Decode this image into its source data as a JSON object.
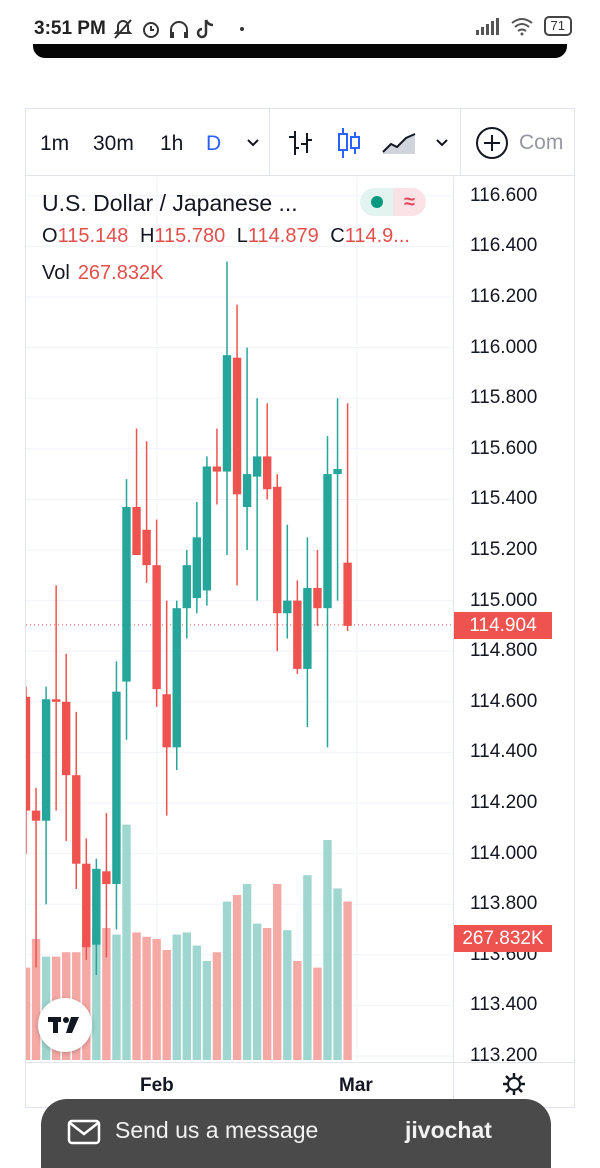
{
  "status_bar": {
    "time": "3:51 PM",
    "battery": "71"
  },
  "toolbar": {
    "timeframes": [
      "1m",
      "30m",
      "1h",
      "D"
    ],
    "active_timeframe": "D",
    "compare_label": "Com"
  },
  "legend": {
    "title": "U.S. Dollar / Japanese ...",
    "open_label": "O",
    "open": "115.148",
    "high_label": "H",
    "high": "115.780",
    "low_label": "L",
    "low": "114.879",
    "close_label": "C",
    "close": "114.9...",
    "vol_label": "Vol",
    "vol": "267.832K"
  },
  "price_axis": {
    "labels": [
      "116.600",
      "116.400",
      "116.200",
      "116.000",
      "115.800",
      "115.600",
      "115.400",
      "115.200",
      "115.000",
      "114.800",
      "114.600",
      "114.400",
      "114.200",
      "114.000",
      "113.800",
      "113.600",
      "113.400",
      "113.200"
    ],
    "last_price": "114.904",
    "last_volume": "267.832K"
  },
  "time_axis": {
    "labels": [
      "Feb",
      "Mar"
    ]
  },
  "jivo": {
    "message": "Send us a message",
    "brand": "jivochat"
  },
  "colors": {
    "up": "#26a69a",
    "down": "#ef5350",
    "accent": "#2962ff"
  },
  "chart_data": {
    "type": "candlestick",
    "title": "U.S. Dollar / Japanese ...",
    "ylim": [
      113.2,
      116.6
    ],
    "x_labels": [
      "Feb",
      "Mar"
    ],
    "candles": [
      {
        "o": 114.62,
        "h": 114.66,
        "l": 114.0,
        "c": 114.17
      },
      {
        "o": 114.17,
        "h": 114.26,
        "l": 113.55,
        "c": 114.13
      },
      {
        "o": 114.13,
        "h": 114.66,
        "l": 113.8,
        "c": 114.61
      },
      {
        "o": 114.61,
        "h": 115.06,
        "l": 114.17,
        "c": 114.6
      },
      {
        "o": 114.6,
        "h": 114.79,
        "l": 114.05,
        "c": 114.31
      },
      {
        "o": 114.31,
        "h": 114.56,
        "l": 113.86,
        "c": 113.96
      },
      {
        "o": 113.96,
        "h": 114.06,
        "l": 113.58,
        "c": 113.63
      },
      {
        "o": 113.64,
        "h": 113.98,
        "l": 113.52,
        "c": 113.94
      },
      {
        "o": 113.93,
        "h": 114.16,
        "l": 113.59,
        "c": 113.88
      },
      {
        "o": 113.88,
        "h": 114.76,
        "l": 113.7,
        "c": 114.64
      },
      {
        "o": 114.68,
        "h": 115.48,
        "l": 114.45,
        "c": 115.37
      },
      {
        "o": 115.37,
        "h": 115.68,
        "l": 115.2,
        "c": 115.18
      },
      {
        "o": 115.28,
        "h": 115.63,
        "l": 115.07,
        "c": 115.14
      },
      {
        "o": 115.14,
        "h": 115.32,
        "l": 114.58,
        "c": 114.65
      },
      {
        "o": 114.63,
        "h": 115.0,
        "l": 114.15,
        "c": 114.42
      },
      {
        "o": 114.42,
        "h": 115.0,
        "l": 114.33,
        "c": 114.97
      },
      {
        "o": 114.97,
        "h": 115.2,
        "l": 114.85,
        "c": 115.14
      },
      {
        "o": 115.01,
        "h": 115.39,
        "l": 114.95,
        "c": 115.25
      },
      {
        "o": 115.04,
        "h": 115.57,
        "l": 114.98,
        "c": 115.53
      },
      {
        "o": 115.53,
        "h": 115.68,
        "l": 115.38,
        "c": 115.51
      },
      {
        "o": 115.51,
        "h": 116.34,
        "l": 115.18,
        "c": 115.97
      },
      {
        "o": 115.96,
        "h": 116.17,
        "l": 115.06,
        "c": 115.42
      },
      {
        "o": 115.37,
        "h": 116.0,
        "l": 115.2,
        "c": 115.5
      },
      {
        "o": 115.49,
        "h": 115.8,
        "l": 115.0,
        "c": 115.57
      },
      {
        "o": 115.57,
        "h": 115.78,
        "l": 115.4,
        "c": 115.44
      },
      {
        "o": 115.45,
        "h": 115.5,
        "l": 114.8,
        "c": 114.95
      },
      {
        "o": 114.95,
        "h": 115.3,
        "l": 114.85,
        "c": 115.0
      },
      {
        "o": 115.0,
        "h": 115.08,
        "l": 114.71,
        "c": 114.73
      },
      {
        "o": 114.73,
        "h": 115.25,
        "l": 114.5,
        "c": 115.05
      },
      {
        "o": 115.05,
        "h": 115.2,
        "l": 114.9,
        "c": 114.97
      },
      {
        "o": 114.97,
        "h": 115.65,
        "l": 114.42,
        "c": 115.5
      },
      {
        "o": 115.5,
        "h": 115.8,
        "l": 115.0,
        "c": 115.52
      },
      {
        "o": 115.15,
        "h": 115.78,
        "l": 114.88,
        "c": 114.9
      }
    ],
    "volumes": [
      0.42,
      0.55,
      0.47,
      0.47,
      0.49,
      0.49,
      0.55,
      0.59,
      0.6,
      0.57,
      1.07,
      0.58,
      0.56,
      0.55,
      0.5,
      0.57,
      0.58,
      0.52,
      0.45,
      0.49,
      0.72,
      0.75,
      0.8,
      0.62,
      0.6,
      0.8,
      0.59,
      0.45,
      0.84,
      0.42,
      1.0,
      0.78,
      0.72
    ]
  }
}
